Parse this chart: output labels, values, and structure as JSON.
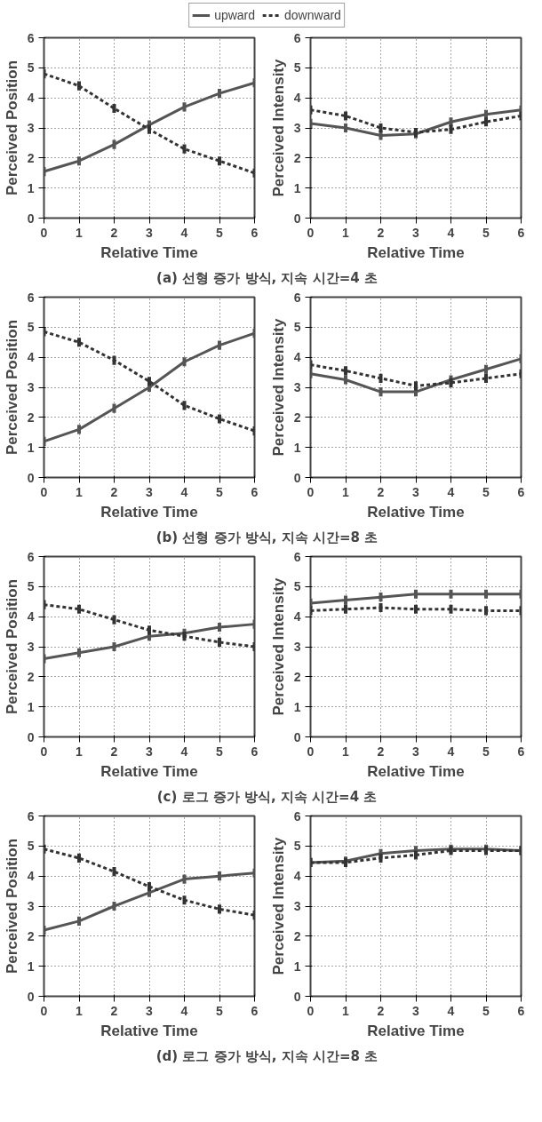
{
  "chart_data": [
    {
      "type": "line",
      "xlabel": "Relative Time",
      "ylabel": "Perceived Position",
      "x": [
        0,
        1,
        2,
        3,
        4,
        5,
        6
      ],
      "xlim": [
        0,
        6
      ],
      "ylim": [
        0,
        6
      ],
      "xticks": [
        0,
        1,
        2,
        3,
        4,
        5,
        6
      ],
      "yticks": [
        0,
        1,
        2,
        3,
        4,
        5,
        6
      ],
      "grid": true,
      "legend": "top",
      "annotations": [
        "(a) 선형 증가 방식, 지속 시간=4 초"
      ],
      "series": [
        {
          "name": "upward",
          "color": "#555555",
          "line_style": "solid",
          "values": [
            1.55,
            1.9,
            2.45,
            3.1,
            3.7,
            4.15,
            4.5
          ],
          "errors": [
            0.15,
            0.15,
            0.15,
            0.15,
            0.15,
            0.15,
            0.15
          ]
        },
        {
          "name": "downward",
          "color": "#333333",
          "line_style": "dashed",
          "values": [
            4.8,
            4.4,
            3.65,
            2.95,
            2.3,
            1.9,
            1.5
          ],
          "errors": [
            0.15,
            0.15,
            0.15,
            0.15,
            0.15,
            0.15,
            0.15
          ]
        }
      ]
    },
    {
      "type": "line",
      "xlabel": "Relative Time",
      "ylabel": "Perceived Intensity",
      "x": [
        0,
        1,
        2,
        3,
        4,
        5,
        6
      ],
      "xlim": [
        0,
        6
      ],
      "ylim": [
        0,
        6
      ],
      "xticks": [
        0,
        1,
        2,
        3,
        4,
        5,
        6
      ],
      "yticks": [
        0,
        1,
        2,
        3,
        4,
        5,
        6
      ],
      "grid": true,
      "series": [
        {
          "color": "#555555",
          "line_style": "solid",
          "values": [
            3.15,
            3.0,
            2.75,
            2.8,
            3.2,
            3.45,
            3.6
          ],
          "errors": [
            0.15,
            0.15,
            0.15,
            0.15,
            0.15,
            0.15,
            0.15
          ]
        },
        {
          "color": "#333333",
          "line_style": "dashed",
          "values": [
            3.6,
            3.4,
            3.0,
            2.85,
            2.95,
            3.2,
            3.4
          ],
          "errors": [
            0.15,
            0.15,
            0.15,
            0.15,
            0.15,
            0.15,
            0.15
          ]
        }
      ]
    },
    {
      "type": "line",
      "xlabel": "Relative Time",
      "ylabel": "Perceived Position",
      "x": [
        0,
        1,
        2,
        3,
        4,
        5,
        6
      ],
      "xlim": [
        0,
        6
      ],
      "ylim": [
        0,
        6
      ],
      "xticks": [
        0,
        1,
        2,
        3,
        4,
        5,
        6
      ],
      "yticks": [
        0,
        1,
        2,
        3,
        4,
        5,
        6
      ],
      "grid": true,
      "annotations": [
        "(b) 선형 증가 방식, 지속 시간=8 초"
      ],
      "series": [
        {
          "color": "#555555",
          "line_style": "solid",
          "values": [
            1.2,
            1.6,
            2.3,
            3.0,
            3.85,
            4.4,
            4.8
          ],
          "errors": [
            0.15,
            0.15,
            0.15,
            0.15,
            0.15,
            0.15,
            0.15
          ]
        },
        {
          "color": "#333333",
          "line_style": "dashed",
          "values": [
            4.85,
            4.5,
            3.9,
            3.2,
            2.4,
            1.95,
            1.55
          ],
          "errors": [
            0.15,
            0.15,
            0.15,
            0.15,
            0.15,
            0.15,
            0.15
          ]
        }
      ]
    },
    {
      "type": "line",
      "xlabel": "Relative Time",
      "ylabel": "Perceived Intensity",
      "x": [
        0,
        1,
        2,
        3,
        4,
        5,
        6
      ],
      "xlim": [
        0,
        6
      ],
      "ylim": [
        0,
        6
      ],
      "xticks": [
        0,
        1,
        2,
        3,
        4,
        5,
        6
      ],
      "yticks": [
        0,
        1,
        2,
        3,
        4,
        5,
        6
      ],
      "grid": true,
      "series": [
        {
          "color": "#555555",
          "line_style": "solid",
          "values": [
            3.45,
            3.25,
            2.85,
            2.85,
            3.25,
            3.6,
            3.95
          ],
          "errors": [
            0.15,
            0.15,
            0.15,
            0.15,
            0.15,
            0.15,
            0.15
          ]
        },
        {
          "color": "#333333",
          "line_style": "dashed",
          "values": [
            3.75,
            3.55,
            3.3,
            3.05,
            3.15,
            3.3,
            3.45
          ],
          "errors": [
            0.15,
            0.15,
            0.15,
            0.15,
            0.15,
            0.15,
            0.15
          ]
        }
      ]
    },
    {
      "type": "line",
      "xlabel": "Relative Time",
      "ylabel": "Perceived Position",
      "x": [
        0,
        1,
        2,
        3,
        4,
        5,
        6
      ],
      "xlim": [
        0,
        6
      ],
      "ylim": [
        0,
        6
      ],
      "xticks": [
        0,
        1,
        2,
        3,
        4,
        5,
        6
      ],
      "yticks": [
        0,
        1,
        2,
        3,
        4,
        5,
        6
      ],
      "grid": true,
      "annotations": [
        "(c) 로그 증가 방식, 지속 시간=4 초"
      ],
      "series": [
        {
          "color": "#555555",
          "line_style": "solid",
          "values": [
            2.6,
            2.8,
            3.0,
            3.35,
            3.45,
            3.65,
            3.75
          ],
          "errors": [
            0.15,
            0.15,
            0.15,
            0.15,
            0.15,
            0.15,
            0.15
          ]
        },
        {
          "color": "#333333",
          "line_style": "dashed",
          "values": [
            4.4,
            4.25,
            3.9,
            3.55,
            3.35,
            3.15,
            3.0
          ],
          "errors": [
            0.15,
            0.15,
            0.15,
            0.15,
            0.15,
            0.15,
            0.15
          ]
        }
      ]
    },
    {
      "type": "line",
      "xlabel": "Relative Time",
      "ylabel": "Perceived Intensity",
      "x": [
        0,
        1,
        2,
        3,
        4,
        5,
        6
      ],
      "xlim": [
        0,
        6
      ],
      "ylim": [
        0,
        6
      ],
      "xticks": [
        0,
        1,
        2,
        3,
        4,
        5,
        6
      ],
      "yticks": [
        0,
        1,
        2,
        3,
        4,
        5,
        6
      ],
      "grid": true,
      "series": [
        {
          "color": "#555555",
          "line_style": "solid",
          "values": [
            4.45,
            4.55,
            4.65,
            4.75,
            4.75,
            4.75,
            4.75
          ],
          "errors": [
            0.15,
            0.15,
            0.15,
            0.15,
            0.15,
            0.15,
            0.15
          ]
        },
        {
          "color": "#333333",
          "line_style": "dashed",
          "values": [
            4.2,
            4.25,
            4.3,
            4.25,
            4.25,
            4.2,
            4.2
          ],
          "errors": [
            0.15,
            0.15,
            0.15,
            0.15,
            0.15,
            0.15,
            0.15
          ]
        }
      ]
    },
    {
      "type": "line",
      "xlabel": "Relative Time",
      "ylabel": "Perceived Position",
      "x": [
        0,
        1,
        2,
        3,
        4,
        5,
        6
      ],
      "xlim": [
        0,
        6
      ],
      "ylim": [
        0,
        6
      ],
      "xticks": [
        0,
        1,
        2,
        3,
        4,
        5,
        6
      ],
      "yticks": [
        0,
        1,
        2,
        3,
        4,
        5,
        6
      ],
      "grid": true,
      "annotations": [
        "(d) 로그 증가 방식, 지속 시간=8 초"
      ],
      "series": [
        {
          "color": "#555555",
          "line_style": "solid",
          "values": [
            2.2,
            2.5,
            3.0,
            3.45,
            3.9,
            4.0,
            4.1
          ],
          "errors": [
            0.15,
            0.15,
            0.15,
            0.15,
            0.15,
            0.15,
            0.15
          ]
        },
        {
          "color": "#333333",
          "line_style": "dashed",
          "values": [
            4.9,
            4.6,
            4.15,
            3.65,
            3.2,
            2.9,
            2.7
          ],
          "errors": [
            0.15,
            0.15,
            0.15,
            0.15,
            0.15,
            0.15,
            0.15
          ]
        }
      ]
    },
    {
      "type": "line",
      "xlabel": "Relative Time",
      "ylabel": "Perceived Intensity",
      "x": [
        0,
        1,
        2,
        3,
        4,
        5,
        6
      ],
      "xlim": [
        0,
        6
      ],
      "ylim": [
        0,
        6
      ],
      "xticks": [
        0,
        1,
        2,
        3,
        4,
        5,
        6
      ],
      "yticks": [
        0,
        1,
        2,
        3,
        4,
        5,
        6
      ],
      "grid": true,
      "series": [
        {
          "color": "#555555",
          "line_style": "solid",
          "values": [
            4.45,
            4.5,
            4.75,
            4.85,
            4.9,
            4.9,
            4.85
          ],
          "errors": [
            0.15,
            0.15,
            0.15,
            0.15,
            0.15,
            0.15,
            0.15
          ]
        },
        {
          "color": "#333333",
          "line_style": "dashed",
          "values": [
            4.45,
            4.45,
            4.6,
            4.7,
            4.85,
            4.85,
            4.85
          ],
          "errors": [
            0.15,
            0.15,
            0.15,
            0.15,
            0.15,
            0.15,
            0.15
          ]
        }
      ]
    }
  ]
}
